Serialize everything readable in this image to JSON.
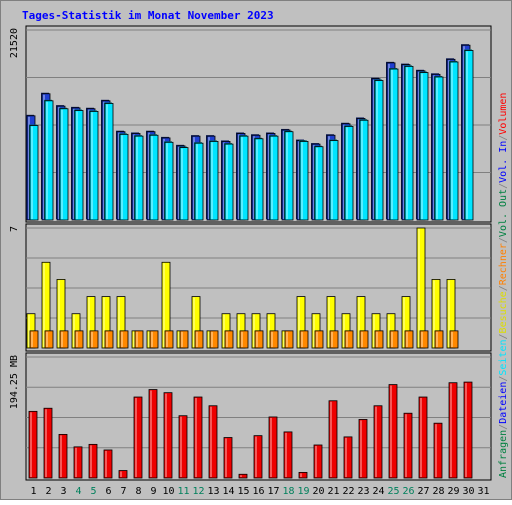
{
  "chart_data": {
    "type": "bar",
    "title": "Tages-Statistik im Monat November 2023",
    "categories": [
      "1",
      "2",
      "3",
      "4",
      "5",
      "6",
      "7",
      "8",
      "9",
      "10",
      "11",
      "12",
      "13",
      "14",
      "15",
      "16",
      "17",
      "18",
      "19",
      "20",
      "21",
      "22",
      "23",
      "24",
      "25",
      "26",
      "27",
      "28",
      "29",
      "30",
      "31"
    ],
    "weekend_categories": [
      "4",
      "5",
      "11",
      "12",
      "18",
      "19",
      "25",
      "26"
    ],
    "panels": [
      {
        "name": "requests",
        "ymax_label": "21520",
        "ylim": [
          0,
          21520
        ],
        "grid": true,
        "series": [
          {
            "name": "Anfragen",
            "color": "#1f3fd0",
            "values": [
              11800,
              14300,
              12900,
              12700,
              12600,
              13500,
              10000,
              9800,
              10000,
              9300,
              8400,
              9500,
              9500,
              8900,
              9800,
              9600,
              9800,
              10200,
              9000,
              8600,
              9600,
              10900,
              11500,
              16000,
              17800,
              17600,
              16900,
              16500,
              18200,
              19800,
              null
            ]
          },
          {
            "name": "Dateien",
            "color": "#00e5ff",
            "values": [
              10700,
              13500,
              12600,
              12400,
              12300,
              13200,
              9700,
              9500,
              9600,
              8800,
              8200,
              8700,
              8900,
              8600,
              9500,
              9200,
              9500,
              10000,
              8900,
              8300,
              9000,
              10600,
              11300,
              15800,
              17100,
              17400,
              16700,
              16200,
              17900,
              19200,
              null
            ]
          },
          {
            "name": "Seiten",
            "color": "#00e5ff",
            "values": []
          }
        ]
      },
      {
        "name": "visits",
        "ymax_label": "7",
        "ylim": [
          0,
          7
        ],
        "grid": true,
        "series": [
          {
            "name": "Besuche",
            "color": "#ffff00",
            "values": [
              2,
              5,
              4,
              2,
              3,
              3,
              3,
              1,
              1,
              5,
              1,
              3,
              1,
              2,
              2,
              2,
              2,
              1,
              3,
              2,
              3,
              2,
              3,
              2,
              2,
              3,
              7,
              4,
              4,
              null,
              null
            ]
          },
          {
            "name": "Rechner",
            "color": "#ff8800",
            "values": [
              1,
              1,
              1,
              1,
              1,
              1,
              1,
              1,
              1,
              1,
              1,
              1,
              1,
              1,
              1,
              1,
              1,
              1,
              1,
              1,
              1,
              1,
              1,
              1,
              1,
              1,
              1,
              1,
              1,
              null,
              null
            ]
          }
        ]
      },
      {
        "name": "volume",
        "ymax_label": "194.25 MB",
        "ylim": [
          0,
          194.25
        ],
        "grid": true,
        "series": [
          {
            "name": "Volumen",
            "color": "#ee0000",
            "values": [
              107,
              112,
              70,
              50,
              54,
              45,
              12,
              130,
              142,
              137,
              100,
              130,
              116,
              65,
              6,
              68,
              98,
              74,
              9,
              53,
              124,
              66,
              94,
              116,
              150,
              104,
              130,
              88,
              153,
              154,
              null
            ]
          }
        ]
      }
    ],
    "legend": {
      "placement": "right",
      "groups": [
        [
          {
            "label": "Anfragen",
            "color": "#008040"
          },
          {
            "label": "/",
            "color": "#808080"
          },
          {
            "label": "Dateien",
            "color": "#0000ff"
          },
          {
            "label": "/",
            "color": "#808080"
          },
          {
            "label": "Seiten",
            "color": "#00e5ff"
          },
          {
            "label": "/",
            "color": "#808080"
          },
          {
            "label": "Besuche",
            "color": "#dddd00"
          },
          {
            "label": "/",
            "color": "#808080"
          },
          {
            "label": "Rechner",
            "color": "#ff8000"
          },
          {
            "label": "/",
            "color": "#808080"
          },
          {
            "label": "Vol. Out",
            "color": "#008040"
          },
          {
            "label": "/",
            "color": "#808080"
          },
          {
            "label": "Vol. In",
            "color": "#0000ff"
          },
          {
            "label": "/",
            "color": "#808080"
          },
          {
            "label": "Volumen",
            "color": "#ff0000"
          }
        ]
      ]
    }
  },
  "colors": {
    "background": "#c0c0c0",
    "title": "#0000ff",
    "weekday_label": "#000000",
    "weekend_label": "#00805c",
    "grid": "#808080"
  }
}
